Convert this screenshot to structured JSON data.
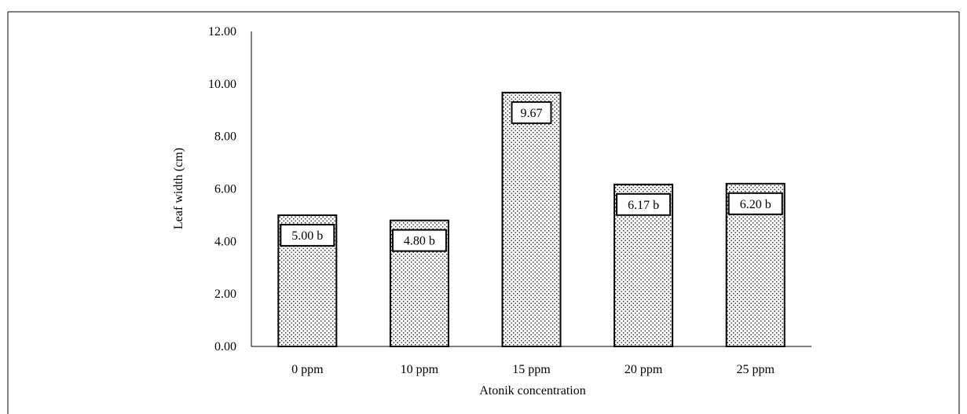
{
  "chart_data": {
    "type": "bar",
    "title": "",
    "xlabel": "Atonik concentration",
    "ylabel": "Leaf width (cm)",
    "categories": [
      "0 ppm",
      "10 ppm",
      "15 ppm",
      "20 ppm",
      "25 ppm"
    ],
    "values": [
      5.0,
      4.8,
      9.67,
      6.17,
      6.2
    ],
    "data_labels": [
      "5.00 b",
      "4.80 b",
      "9.67",
      "6.17 b",
      "6.20 b"
    ],
    "ylim": [
      0,
      12
    ],
    "yticks": [
      "0.00",
      "2.00",
      "4.00",
      "6.00",
      "8.00",
      "10.00",
      "12.00"
    ],
    "grid": false,
    "legend": "none",
    "bar_fill": "dotted-pattern",
    "bar_color": "#000000",
    "background": "#ffffff"
  }
}
